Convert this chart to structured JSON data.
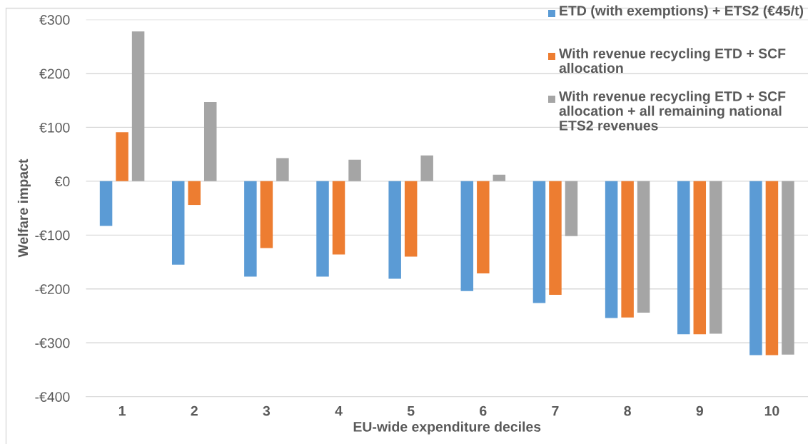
{
  "chart_data": {
    "type": "bar",
    "xlabel": "EU-wide expenditure deciles",
    "ylabel": "Welfare impact",
    "categories": [
      "1",
      "2",
      "3",
      "4",
      "5",
      "6",
      "7",
      "8",
      "9",
      "10"
    ],
    "series": [
      {
        "name": "ETD (with exemptions) + ETS2 (€45/t)",
        "color": "#5b9bd5",
        "values": [
          -83,
          -155,
          -177,
          -177,
          -181,
          -204,
          -226,
          -254,
          -284,
          -323
        ]
      },
      {
        "name": "With revenue recycling ETD + SCF allocation",
        "color": "#ed7d31",
        "values": [
          91,
          -44,
          -124,
          -136,
          -140,
          -171,
          -211,
          -253,
          -284,
          -323
        ]
      },
      {
        "name": "With revenue recycling ETD + SCF allocation + all remaining national ETS2 revenues",
        "color": "#a5a5a5",
        "values": [
          278,
          147,
          43,
          40,
          48,
          12,
          -102,
          -244,
          -283,
          -322
        ]
      }
    ],
    "ylim": [
      -400,
      300
    ],
    "yticks": [
      {
        "value": 300,
        "label": "€300"
      },
      {
        "value": 200,
        "label": "€200"
      },
      {
        "value": 100,
        "label": "€100"
      },
      {
        "value": 0,
        "label": "€0"
      },
      {
        "value": -100,
        "label": "-€100"
      },
      {
        "value": -200,
        "label": "-€200"
      },
      {
        "value": -300,
        "label": "-€300"
      },
      {
        "value": -400,
        "label": "-€400"
      }
    ],
    "grid": "y",
    "legend": "top right"
  }
}
